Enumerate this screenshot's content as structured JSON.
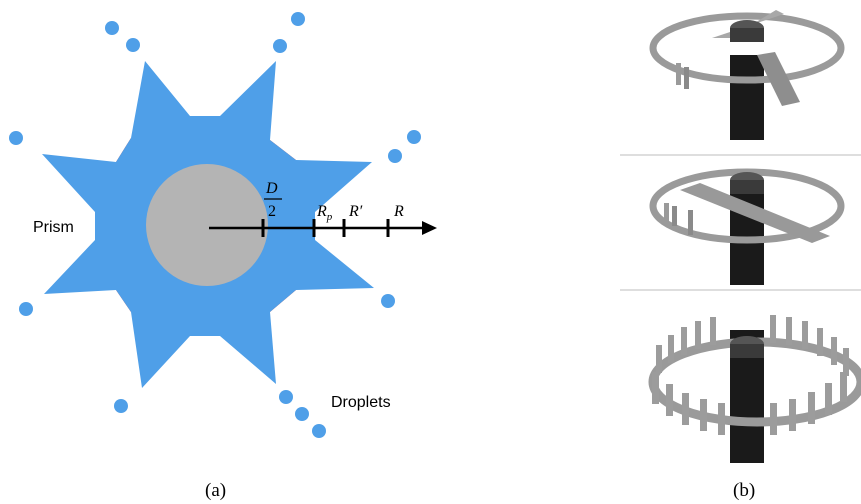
{
  "panel_a": {
    "caption": "(a)",
    "labels": {
      "prism": "Prism",
      "droplets": "Droplets",
      "d_over_2_num": "D",
      "d_over_2_den": "2",
      "r_p_main": "R",
      "r_p_sub": "p",
      "r_prime": "R′",
      "r": "R"
    },
    "colors": {
      "star": "#4f9fe8",
      "prism": "#ee2a10",
      "core": "#b4b4b4",
      "droplet": "#4f9fe8",
      "axis": "#000000"
    }
  },
  "panel_b": {
    "caption": "(b)",
    "photos": 3
  }
}
